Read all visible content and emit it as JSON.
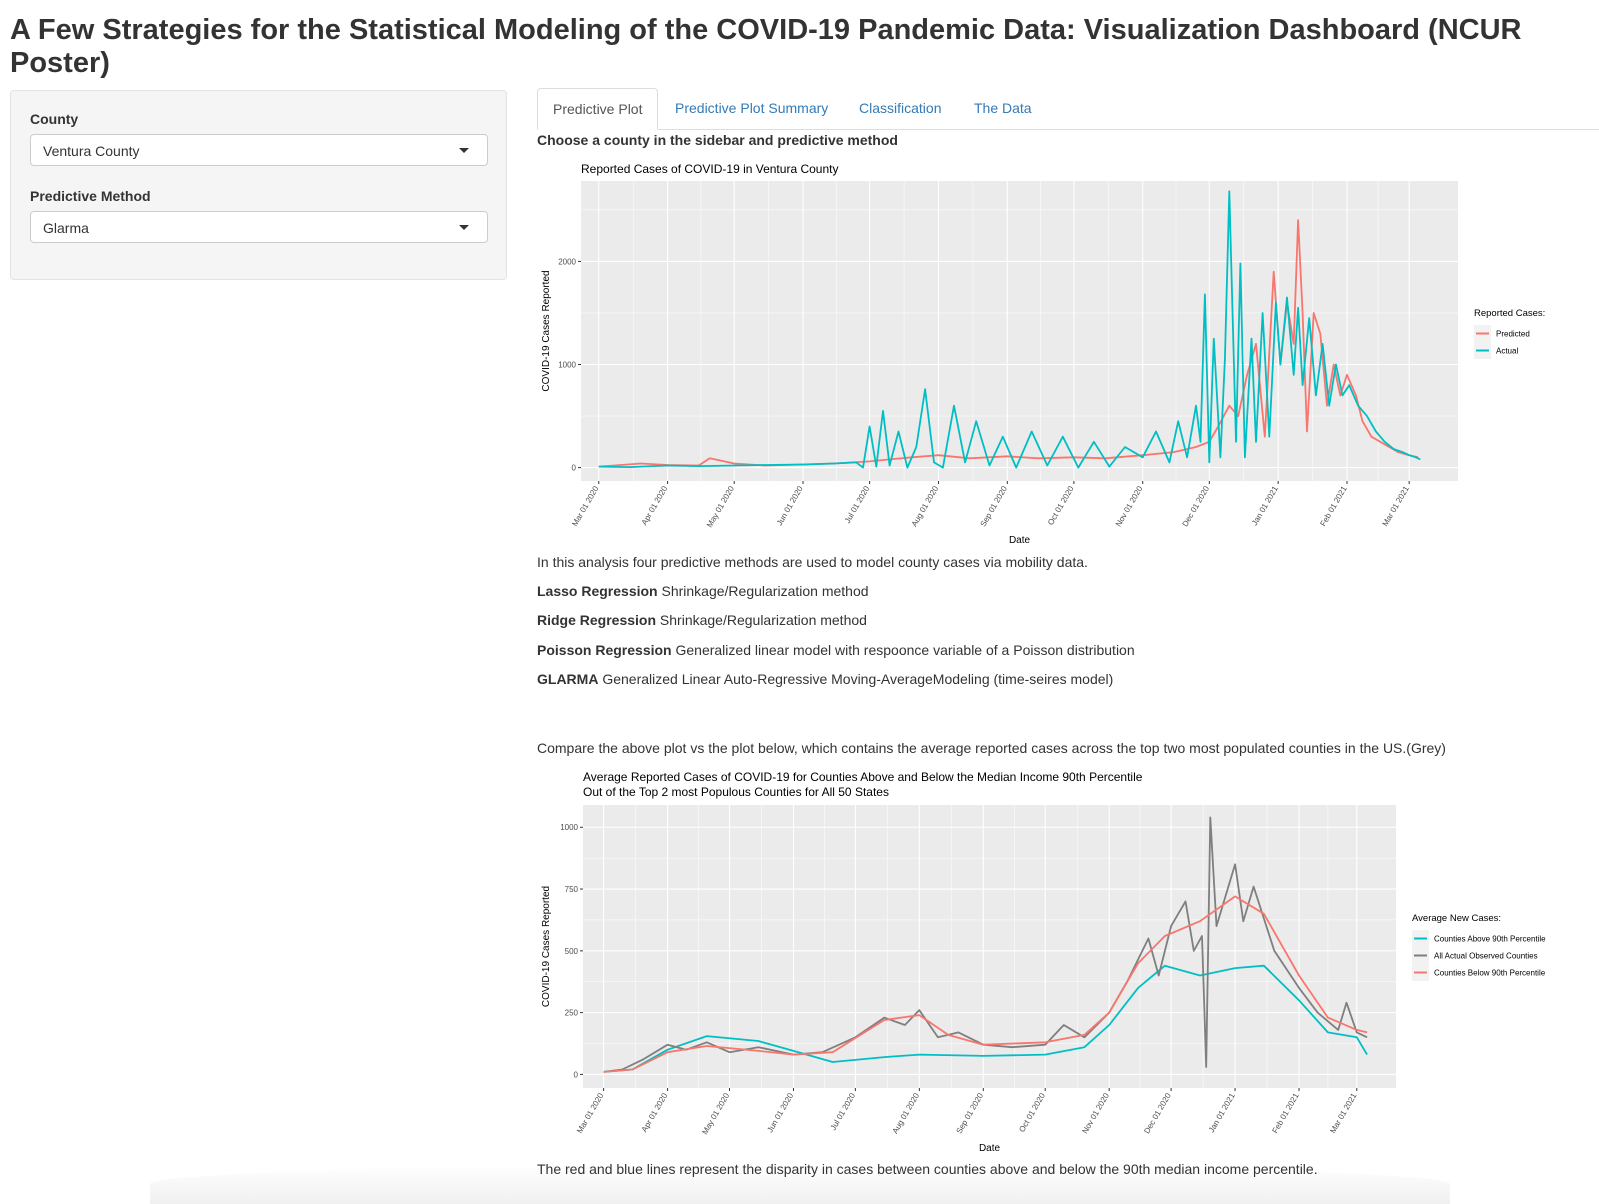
{
  "header": {
    "title": "A Few Strategies for the Statistical Modeling of the COVID-19 Pandemic Data: Visualization Dashboard (NCUR Poster)"
  },
  "sidebar": {
    "county_label": "County",
    "county_value": "Ventura County",
    "method_label": "Predictive Method",
    "method_value": "Glarma"
  },
  "tabs": [
    {
      "label": "Predictive Plot",
      "active": true
    },
    {
      "label": "Predictive Plot Summary",
      "active": false
    },
    {
      "label": "Classification",
      "active": false
    },
    {
      "label": "The Data",
      "active": false
    }
  ],
  "main": {
    "instruction": "Choose a county in the sidebar and predictive method",
    "intro": "In this analysis four predictive methods are used to model county cases via mobility data.",
    "methods": [
      {
        "name": "Lasso Regression",
        "desc": "Shrinkage/Regularization method"
      },
      {
        "name": "Ridge Regression",
        "desc": "Shrinkage/Regularization method"
      },
      {
        "name": "Poisson Regression",
        "desc": "Generalized linear model with respoonce variable of a Poisson distribution"
      },
      {
        "name": "GLARMA",
        "desc": "Generalized Linear Auto-Regressive Moving-AverageModeling (time-seires model)"
      }
    ],
    "compare": "Compare the above plot vs the plot below, which contains the average reported cases across the top two most populated counties in the US.(Grey)",
    "footer": "The red and blue lines represent the disparity in cases between counties above and below the 90th median income percentile."
  },
  "chart_data": [
    {
      "type": "line",
      "title": "Reported Cases of COVID-19 in Ventura County",
      "xlabel": "Date",
      "ylabel": "COVID-19 Cases Reported",
      "x_ticks": [
        "Mar 01 2020",
        "Apr 01 2020",
        "May 01 2020",
        "Jun 01 2020",
        "Jul 01 2020",
        "Aug 01 2020",
        "Sep 01 2020",
        "Oct 01 2020",
        "Nov 01 2020",
        "Dec 01 2020",
        "Jan 01 2021",
        "Feb 01 2021",
        "Mar 01 2021"
      ],
      "y_ticks": [
        0,
        1000,
        2000
      ],
      "xlim": [
        "2020-02-22",
        "2021-03-23"
      ],
      "ylim": [
        -130,
        2780
      ],
      "legend_title": "Reported Cases:",
      "legend_position": "right",
      "series": [
        {
          "name": "Predicted",
          "color": "#F8766D",
          "x": [
            "2020-03-01",
            "2020-03-20",
            "2020-04-01",
            "2020-04-15",
            "2020-04-20",
            "2020-05-01",
            "2020-05-15",
            "2020-06-01",
            "2020-06-15",
            "2020-07-01",
            "2020-07-10",
            "2020-07-20",
            "2020-08-01",
            "2020-08-15",
            "2020-09-01",
            "2020-09-15",
            "2020-10-01",
            "2020-10-15",
            "2020-11-01",
            "2020-11-15",
            "2020-11-25",
            "2020-12-01",
            "2020-12-05",
            "2020-12-10",
            "2020-12-14",
            "2020-12-18",
            "2020-12-22",
            "2020-12-26",
            "2020-12-30",
            "2021-01-02",
            "2021-01-05",
            "2021-01-08",
            "2021-01-10",
            "2021-01-12",
            "2021-01-14",
            "2021-01-17",
            "2021-01-20",
            "2021-01-23",
            "2021-01-26",
            "2021-01-29",
            "2021-02-01",
            "2021-02-05",
            "2021-02-08",
            "2021-02-12",
            "2021-02-16",
            "2021-02-20",
            "2021-02-24",
            "2021-03-01",
            "2021-03-05"
          ],
          "y": [
            10,
            40,
            25,
            20,
            90,
            40,
            20,
            30,
            40,
            60,
            80,
            100,
            120,
            90,
            110,
            90,
            100,
            90,
            120,
            150,
            200,
            250,
            400,
            600,
            500,
            900,
            1200,
            300,
            1900,
            1000,
            1600,
            1200,
            2400,
            1500,
            350,
            1500,
            1300,
            600,
            1000,
            700,
            900,
            700,
            450,
            300,
            250,
            200,
            150,
            120,
            100
          ]
        },
        {
          "name": "Actual",
          "color": "#00BFC4",
          "x": [
            "2020-03-01",
            "2020-03-15",
            "2020-04-01",
            "2020-04-15",
            "2020-05-01",
            "2020-05-15",
            "2020-06-01",
            "2020-06-15",
            "2020-06-25",
            "2020-06-28",
            "2020-07-01",
            "2020-07-04",
            "2020-07-07",
            "2020-07-10",
            "2020-07-14",
            "2020-07-18",
            "2020-07-22",
            "2020-07-26",
            "2020-07-30",
            "2020-08-03",
            "2020-08-08",
            "2020-08-13",
            "2020-08-18",
            "2020-08-24",
            "2020-08-30",
            "2020-09-05",
            "2020-09-12",
            "2020-09-19",
            "2020-09-26",
            "2020-10-03",
            "2020-10-10",
            "2020-10-17",
            "2020-10-24",
            "2020-11-01",
            "2020-11-07",
            "2020-11-13",
            "2020-11-17",
            "2020-11-21",
            "2020-11-25",
            "2020-11-27",
            "2020-11-29",
            "2020-12-01",
            "2020-12-03",
            "2020-12-06",
            "2020-12-08",
            "2020-12-10",
            "2020-12-13",
            "2020-12-15",
            "2020-12-17",
            "2020-12-20",
            "2020-12-22",
            "2020-12-25",
            "2020-12-28",
            "2020-12-31",
            "2021-01-02",
            "2021-01-05",
            "2021-01-08",
            "2021-01-10",
            "2021-01-12",
            "2021-01-15",
            "2021-01-18",
            "2021-01-21",
            "2021-01-24",
            "2021-01-27",
            "2021-01-30",
            "2021-02-02",
            "2021-02-06",
            "2021-02-10",
            "2021-02-14",
            "2021-02-18",
            "2021-02-22",
            "2021-02-26",
            "2021-03-01",
            "2021-03-04",
            "2021-03-06"
          ],
          "y": [
            10,
            5,
            20,
            15,
            20,
            25,
            30,
            40,
            50,
            0,
            400,
            10,
            550,
            20,
            350,
            0,
            200,
            760,
            50,
            0,
            600,
            50,
            450,
            20,
            300,
            0,
            350,
            20,
            300,
            0,
            250,
            10,
            200,
            100,
            350,
            50,
            450,
            100,
            600,
            250,
            1680,
            50,
            1250,
            100,
            1050,
            2680,
            250,
            1980,
            100,
            1250,
            250,
            1500,
            300,
            1600,
            1000,
            1650,
            900,
            1550,
            800,
            1450,
            700,
            1200,
            600,
            1000,
            700,
            800,
            600,
            500,
            350,
            250,
            180,
            150,
            120,
            100,
            80
          ]
        }
      ]
    },
    {
      "type": "line",
      "title": "Average Reported Cases of COVID-19 for Counties Above and Below the Median Income 90th Percentile",
      "subtitle": "Out of the Top 2 most Populous Counties for All 50 States",
      "xlabel": "Date",
      "ylabel": "COVID-19 Cases Reported",
      "x_ticks": [
        "Mar 01 2020",
        "Apr 01 2020",
        "May 01 2020",
        "Jun 01 2020",
        "Jul 01 2020",
        "Aug 01 2020",
        "Sep 01 2020",
        "Oct 01 2020",
        "Nov 01 2020",
        "Dec 01 2020",
        "Jan 01 2021",
        "Feb 01 2021",
        "Mar 01 2021"
      ],
      "y_ticks": [
        0,
        250,
        500,
        750,
        1000
      ],
      "xlim": [
        "2020-02-20",
        "2021-03-20"
      ],
      "ylim": [
        -55,
        1090
      ],
      "legend_title": "Average New Cases:",
      "legend_position": "right",
      "series": [
        {
          "name": "Counties Above 90th Percentile",
          "color": "#00BFC4",
          "x": [
            "2020-03-01",
            "2020-03-15",
            "2020-04-01",
            "2020-04-20",
            "2020-05-15",
            "2020-06-01",
            "2020-06-20",
            "2020-07-15",
            "2020-08-01",
            "2020-09-01",
            "2020-10-01",
            "2020-10-20",
            "2020-11-01",
            "2020-11-15",
            "2020-11-28",
            "2020-12-15",
            "2021-01-01",
            "2021-01-15",
            "2021-02-01",
            "2021-02-15",
            "2021-03-01",
            "2021-03-06"
          ],
          "y": [
            10,
            20,
            100,
            155,
            135,
            95,
            50,
            70,
            80,
            75,
            80,
            110,
            200,
            350,
            440,
            400,
            430,
            440,
            300,
            170,
            150,
            80
          ]
        },
        {
          "name": "All Actual Observed Counties",
          "color": "#7F7F7F",
          "x": [
            "2020-03-01",
            "2020-03-10",
            "2020-03-20",
            "2020-04-01",
            "2020-04-10",
            "2020-04-20",
            "2020-05-01",
            "2020-05-15",
            "2020-06-01",
            "2020-06-15",
            "2020-07-01",
            "2020-07-15",
            "2020-07-25",
            "2020-08-01",
            "2020-08-10",
            "2020-08-20",
            "2020-09-01",
            "2020-09-15",
            "2020-10-01",
            "2020-10-10",
            "2020-10-20",
            "2020-11-01",
            "2020-11-10",
            "2020-11-20",
            "2020-11-25",
            "2020-12-01",
            "2020-12-08",
            "2020-12-12",
            "2020-12-16",
            "2020-12-18",
            "2020-12-20",
            "2020-12-23",
            "2021-01-01",
            "2021-01-05",
            "2021-01-10",
            "2021-01-20",
            "2021-02-01",
            "2021-02-10",
            "2021-02-20",
            "2021-02-24",
            "2021-03-01",
            "2021-03-06"
          ],
          "y": [
            10,
            20,
            60,
            120,
            100,
            130,
            90,
            110,
            80,
            90,
            150,
            230,
            200,
            260,
            150,
            170,
            120,
            110,
            120,
            200,
            150,
            250,
            380,
            550,
            400,
            600,
            700,
            500,
            560,
            30,
            1040,
            600,
            850,
            620,
            760,
            500,
            350,
            250,
            180,
            290,
            170,
            150
          ]
        },
        {
          "name": "Counties Below 90th Percentile",
          "color": "#F8766D",
          "x": [
            "2020-03-01",
            "2020-03-15",
            "2020-04-01",
            "2020-04-20",
            "2020-05-15",
            "2020-06-01",
            "2020-06-20",
            "2020-07-15",
            "2020-08-01",
            "2020-08-15",
            "2020-09-01",
            "2020-10-01",
            "2020-10-20",
            "2020-11-01",
            "2020-11-15",
            "2020-11-28",
            "2020-12-15",
            "2021-01-01",
            "2021-01-15",
            "2021-02-01",
            "2021-02-15",
            "2021-03-01",
            "2021-03-06"
          ],
          "y": [
            10,
            20,
            90,
            115,
            95,
            80,
            90,
            220,
            240,
            160,
            120,
            130,
            160,
            250,
            450,
            560,
            620,
            720,
            650,
            400,
            230,
            180,
            170
          ]
        }
      ]
    }
  ]
}
